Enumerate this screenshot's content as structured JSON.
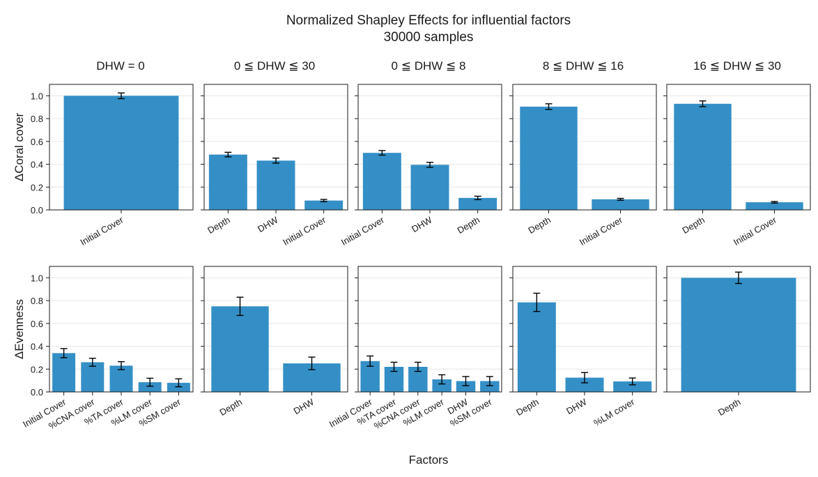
{
  "figure": {
    "title": "Normalized Shapley Effects for influential factors",
    "subtitle": "30000 samples",
    "xlabel": "Factors",
    "bar_color": "#348FC6",
    "error_color": "#000000"
  },
  "column_titles": [
    "DHW = 0",
    "0 ≦ DHW ≦ 30",
    "0 ≦ DHW ≦ 8",
    "8 ≦ DHW ≦ 16",
    "16 ≦ DHW ≦ 30"
  ],
  "row_labels": [
    "ΔCoral cover",
    "ΔEvenness"
  ],
  "y_ticks": [
    "0.0",
    "0.2",
    "0.4",
    "0.6",
    "0.8",
    "1.0"
  ],
  "chart_data": [
    {
      "type": "bar",
      "row": 0,
      "col": 0,
      "title": "DHW = 0",
      "ylabel": "ΔCoral cover",
      "ylim": [
        0,
        1.1
      ],
      "grid": true,
      "categories": [
        "Initial Cover"
      ],
      "values": [
        1.0
      ],
      "errors": [
        0.025
      ]
    },
    {
      "type": "bar",
      "row": 0,
      "col": 1,
      "title": "0 ≦ DHW ≦ 30",
      "ylabel": "ΔCoral cover",
      "ylim": [
        0,
        1.1
      ],
      "grid": true,
      "categories": [
        "Depth",
        "DHW",
        "Initial Cover"
      ],
      "values": [
        0.485,
        0.432,
        0.082
      ],
      "errors": [
        0.02,
        0.022,
        0.01
      ]
    },
    {
      "type": "bar",
      "row": 0,
      "col": 2,
      "title": "0 ≦ DHW ≦ 8",
      "ylabel": "ΔCoral cover",
      "ylim": [
        0,
        1.1
      ],
      "grid": true,
      "categories": [
        "Initial Cover",
        "DHW",
        "Depth"
      ],
      "values": [
        0.5,
        0.395,
        0.105
      ],
      "errors": [
        0.02,
        0.022,
        0.015
      ]
    },
    {
      "type": "bar",
      "row": 0,
      "col": 3,
      "title": "8 ≦ DHW ≦ 16",
      "ylabel": "ΔCoral cover",
      "ylim": [
        0,
        1.1
      ],
      "grid": true,
      "categories": [
        "Depth",
        "Initial Cover"
      ],
      "values": [
        0.905,
        0.093
      ],
      "errors": [
        0.025,
        0.008
      ]
    },
    {
      "type": "bar",
      "row": 0,
      "col": 4,
      "title": "16 ≦ DHW ≦ 30",
      "ylabel": "ΔCoral cover",
      "ylim": [
        0,
        1.1
      ],
      "grid": true,
      "categories": [
        "Depth",
        "Initial Cover"
      ],
      "values": [
        0.93,
        0.067
      ],
      "errors": [
        0.025,
        0.007
      ]
    },
    {
      "type": "bar",
      "row": 1,
      "col": 0,
      "title": "DHW = 0",
      "ylabel": "ΔEvenness",
      "ylim": [
        0,
        1.1
      ],
      "grid": true,
      "categories": [
        "Initial Cover",
        "%CNA cover",
        "%TA cover",
        "%LM cover",
        "%SM cover"
      ],
      "values": [
        0.34,
        0.26,
        0.23,
        0.085,
        0.08
      ],
      "errors": [
        0.04,
        0.035,
        0.035,
        0.035,
        0.035
      ]
    },
    {
      "type": "bar",
      "row": 1,
      "col": 1,
      "title": "0 ≦ DHW ≦ 30",
      "ylabel": "ΔEvenness",
      "ylim": [
        0,
        1.1
      ],
      "grid": true,
      "categories": [
        "Depth",
        "DHW"
      ],
      "values": [
        0.75,
        0.25
      ],
      "errors": [
        0.08,
        0.055
      ]
    },
    {
      "type": "bar",
      "row": 1,
      "col": 2,
      "title": "0 ≦ DHW ≦ 8",
      "ylabel": "ΔEvenness",
      "ylim": [
        0,
        1.1
      ],
      "grid": true,
      "categories": [
        "Initial Cover",
        "%TA cover",
        "%CNA cover",
        "%LM cover",
        "DHW",
        "%SM cover"
      ],
      "values": [
        0.27,
        0.22,
        0.22,
        0.11,
        0.095,
        0.095
      ],
      "errors": [
        0.045,
        0.04,
        0.04,
        0.04,
        0.04,
        0.04
      ]
    },
    {
      "type": "bar",
      "row": 1,
      "col": 3,
      "title": "8 ≦ DHW ≦ 16",
      "ylabel": "ΔEvenness",
      "ylim": [
        0,
        1.1
      ],
      "grid": true,
      "categories": [
        "Depth",
        "DHW",
        "%LM cover"
      ],
      "values": [
        0.785,
        0.125,
        0.092
      ],
      "errors": [
        0.08,
        0.045,
        0.03
      ]
    },
    {
      "type": "bar",
      "row": 1,
      "col": 4,
      "title": "16 ≦ DHW ≦ 30",
      "ylabel": "ΔEvenness",
      "ylim": [
        0,
        1.1
      ],
      "grid": true,
      "categories": [
        "Depth"
      ],
      "values": [
        1.0
      ],
      "errors": [
        0.05
      ]
    }
  ]
}
